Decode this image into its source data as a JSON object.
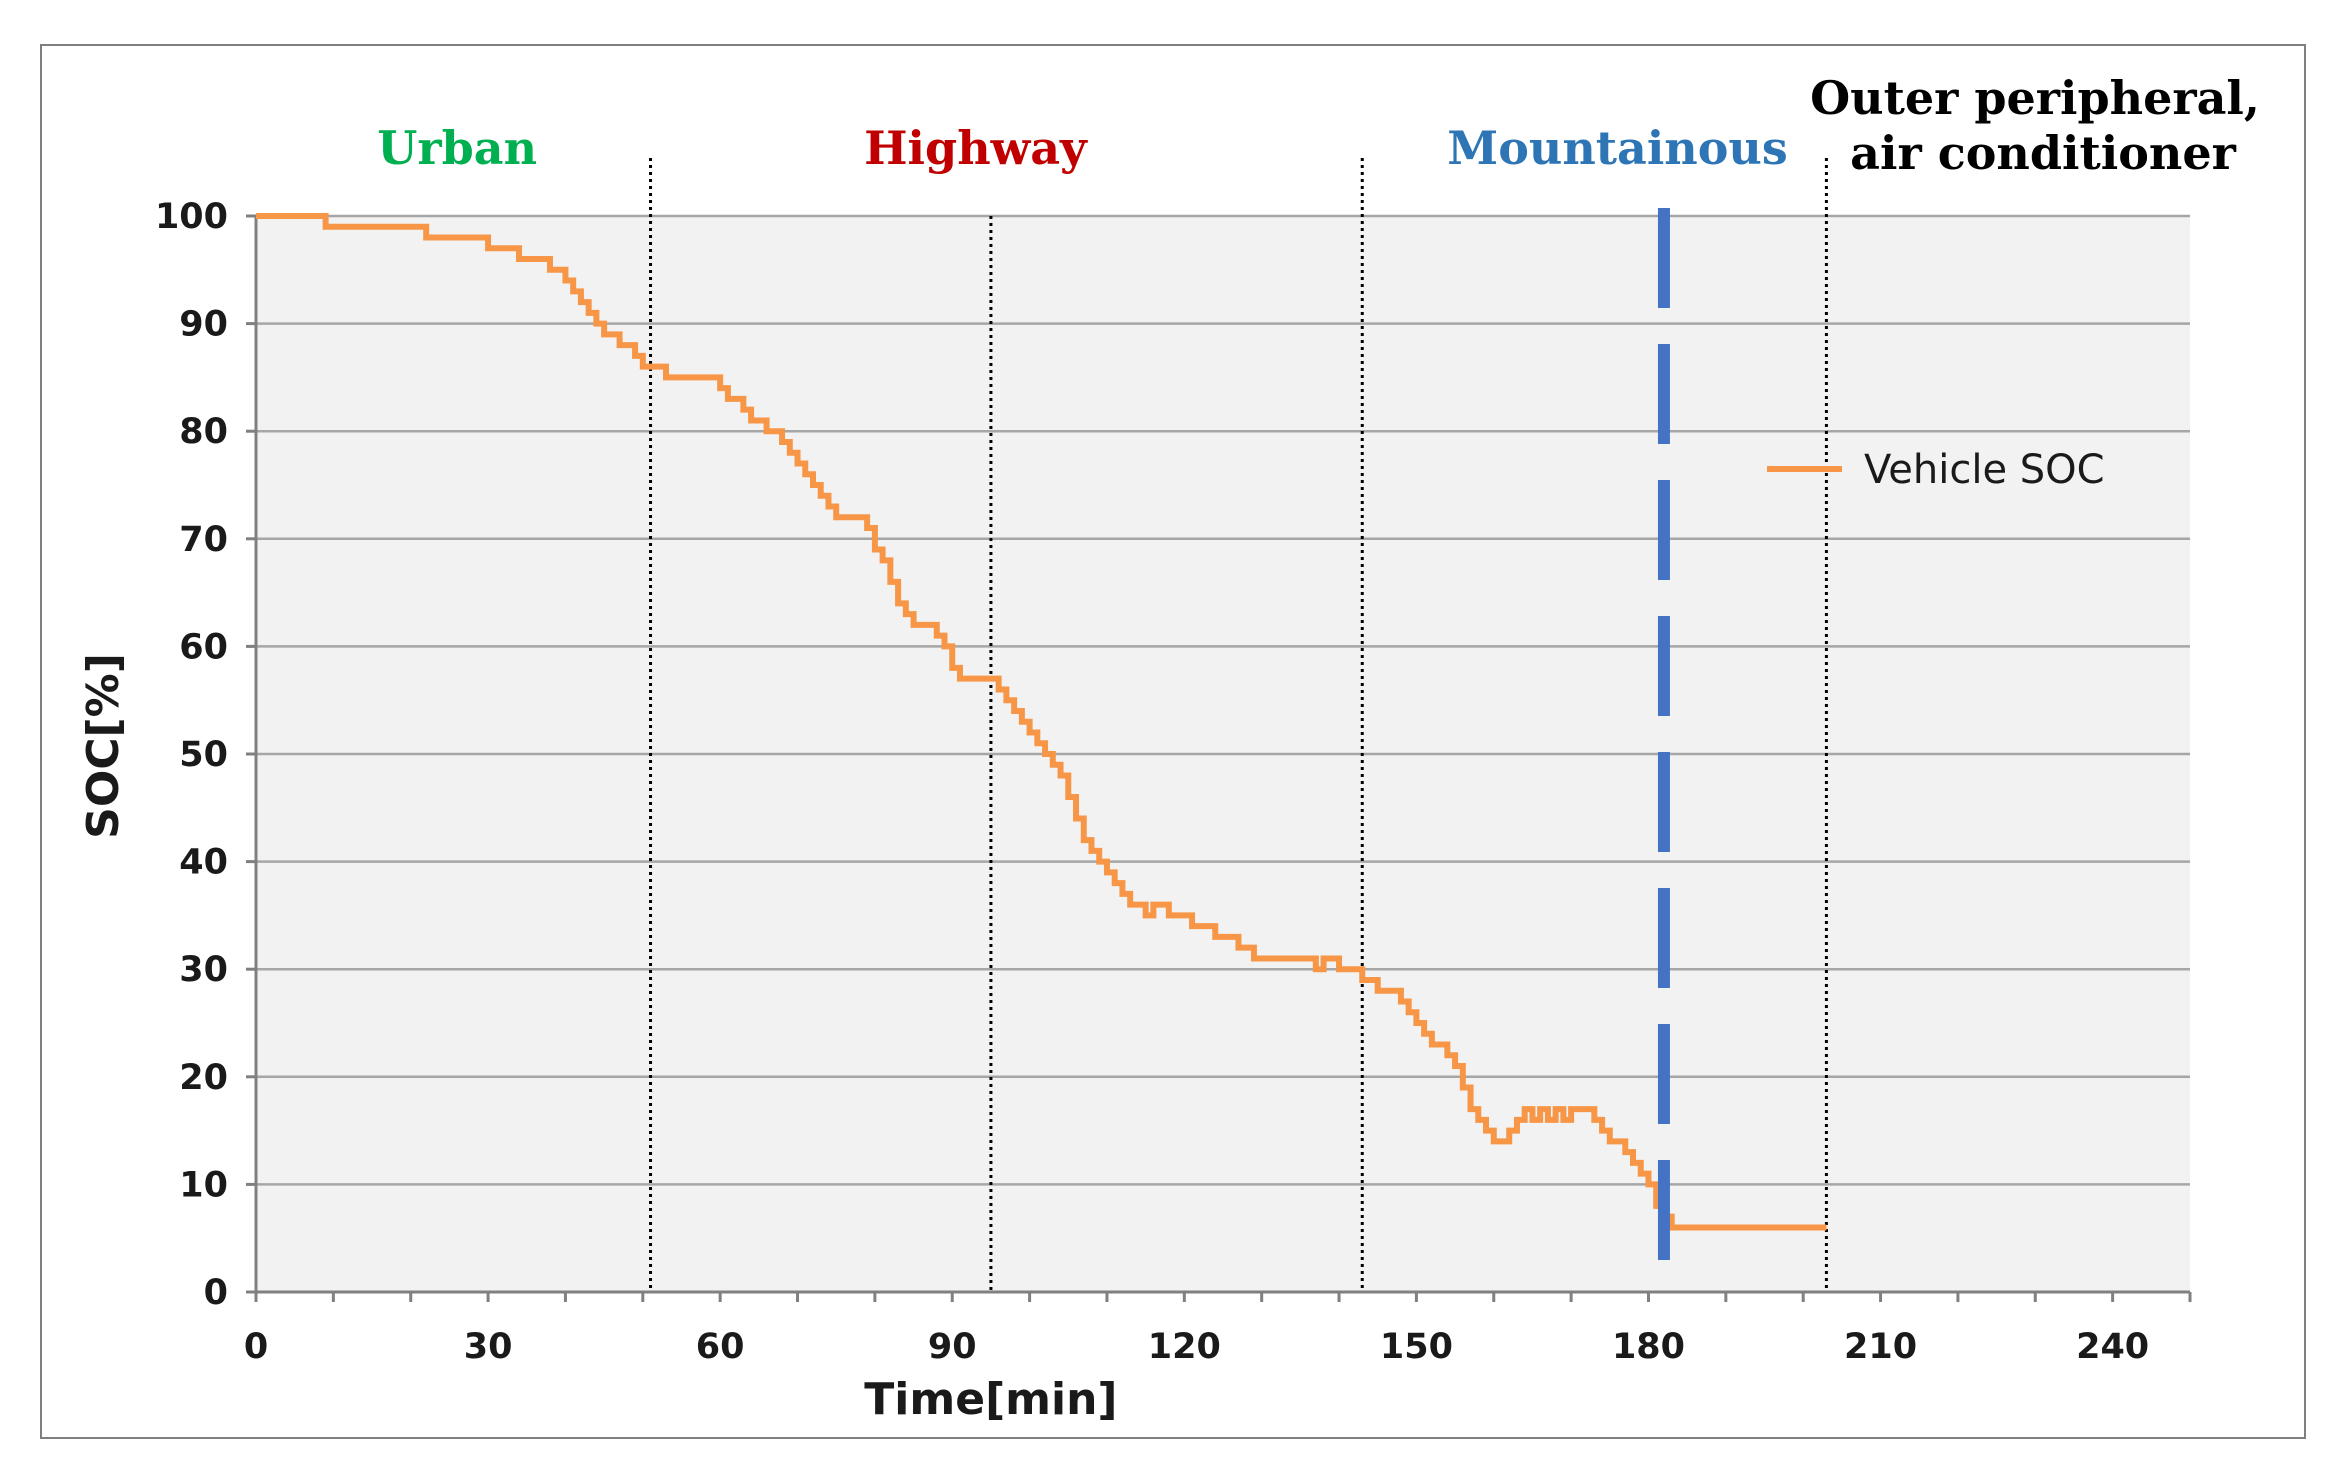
{
  "chart_data": {
    "type": "line",
    "xlabel": "Time[min]",
    "ylabel": "SOC[%]",
    "xlim": [
      0,
      250
    ],
    "ylim": [
      0,
      100
    ],
    "x_ticks": [
      0,
      30,
      60,
      90,
      120,
      150,
      180,
      210,
      240
    ],
    "y_ticks": [
      0,
      10,
      20,
      30,
      40,
      50,
      60,
      70,
      80,
      90,
      100
    ],
    "grid": "horizontal",
    "legend_position": "right",
    "colors": {
      "series": "#f79646",
      "plot_background": "#f2f2f2",
      "grid": "#a6a6a6",
      "urban": "#00b050",
      "highway": "#c00000",
      "mountainous": "#2e75b6",
      "outer": "#000000",
      "marker_line": "#4472c4"
    },
    "regions": [
      {
        "label": "Urban",
        "color": "#00b050",
        "label_x": 26
      },
      {
        "label": "Highway",
        "color": "#c00000",
        "label_x": 93
      },
      {
        "label": "Mountainous",
        "color": "#2e75b6",
        "label_x": 176
      }
    ],
    "outer_label_lines": [
      "Outer peripheral,",
      "air conditioner"
    ],
    "region_boundaries": [
      51,
      143,
      203
    ],
    "inner_dotted_lines": [
      95
    ],
    "marker_line_x": 182,
    "series": [
      {
        "name": "Vehicle SOC",
        "step": true,
        "x": [
          0,
          9,
          22,
          30,
          34,
          38,
          40,
          41,
          42,
          43,
          44,
          45,
          47,
          49,
          50,
          51,
          53,
          55,
          60,
          61,
          63,
          64,
          66,
          68,
          69,
          70,
          71,
          72,
          73,
          74,
          75,
          76,
          79,
          80,
          81,
          82,
          83,
          84,
          85,
          86,
          88,
          89,
          90,
          91,
          92,
          94,
          96,
          97,
          98,
          99,
          100,
          101,
          102,
          103,
          104,
          105,
          106,
          107,
          108,
          109,
          110,
          111,
          112,
          113,
          114,
          115,
          116,
          118,
          121,
          124,
          127,
          129,
          132,
          134,
          137,
          138,
          140,
          143,
          145,
          148,
          149,
          150,
          151,
          152,
          154,
          155,
          156,
          157,
          158,
          159,
          160,
          161,
          162,
          163,
          164,
          165,
          166,
          167,
          168,
          169,
          170,
          171,
          172,
          173,
          174,
          175,
          176,
          177,
          178,
          179,
          180,
          181,
          182,
          183,
          203
        ],
        "y": [
          100,
          99,
          98,
          97,
          96,
          95,
          94,
          93,
          92,
          91,
          90,
          89,
          88,
          87,
          86,
          86,
          85,
          85,
          84,
          83,
          82,
          81,
          80,
          79,
          78,
          77,
          76,
          75,
          74,
          73,
          72,
          72,
          71,
          69,
          68,
          66,
          64,
          63,
          62,
          62,
          61,
          60,
          58,
          57,
          57,
          57,
          56,
          55,
          54,
          53,
          52,
          51,
          50,
          49,
          48,
          46,
          44,
          42,
          41,
          40,
          39,
          38,
          37,
          36,
          36,
          35,
          36,
          35,
          34,
          33,
          32,
          31,
          31,
          31,
          30,
          31,
          30,
          29,
          28,
          27,
          26,
          25,
          24,
          23,
          22,
          21,
          19,
          17,
          16,
          15,
          14,
          14,
          15,
          16,
          17,
          16,
          17,
          16,
          17,
          16,
          17,
          17,
          17,
          16,
          15,
          14,
          14,
          13,
          12,
          11,
          10,
          8,
          7,
          6,
          6
        ]
      }
    ]
  }
}
